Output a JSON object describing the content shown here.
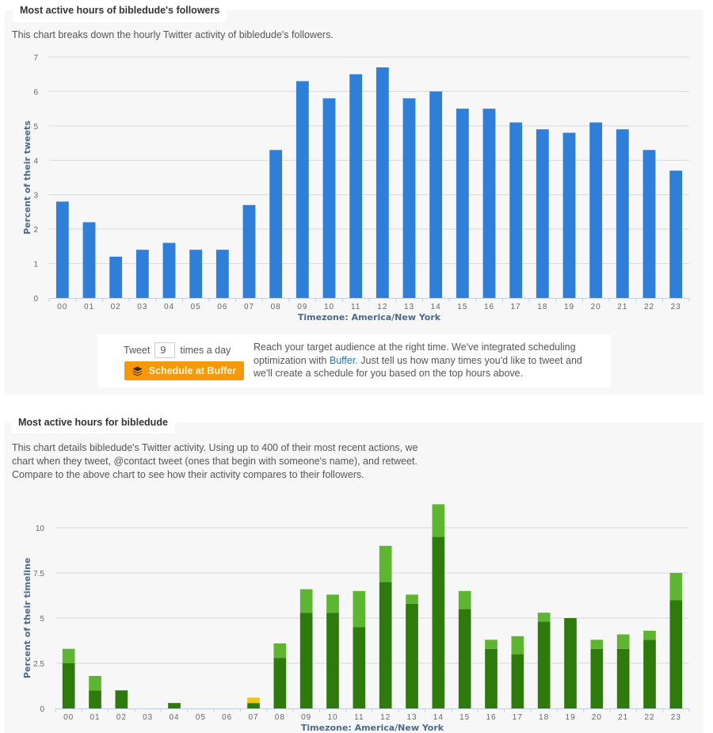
{
  "section1": {
    "title": "Most active hours of bibledude's followers",
    "description": "This chart breaks down the hourly Twitter activity of bibledude's followers."
  },
  "promo": {
    "tweet_label": "Tweet",
    "tweet_count": "9",
    "times_label": "times a day",
    "button_label": "Schedule at Buffer",
    "button_icon": "buffer-stack-icon",
    "text_before": "Reach your target audience at the right time. We've integrated scheduling optimization with ",
    "link_text": "Buffer",
    "text_after": ". Just tell us how many times you'd like to tweet and we'll create a schedule for you based on the top hours above.",
    "button_color": "#f5990b"
  },
  "section2": {
    "title": "Most active hours for bibledude",
    "description_lines": [
      "This chart details bibledude's Twitter activity. Using up to 400 of their most recent actions, we",
      "chart when they tweet, @contact tweet (ones that begin with someone's name), and retweet.",
      "Compare to the above chart to see how their activity compares to their followers."
    ]
  },
  "chart_data": [
    {
      "type": "bar",
      "title": "Most active hours of bibledude's followers",
      "xlabel": "Timezone: America/New York",
      "ylabel": "Percent of their tweets",
      "ylim": [
        0,
        7
      ],
      "yticks": [
        0,
        1,
        2,
        3,
        4,
        5,
        6,
        7
      ],
      "grid": true,
      "color": "#2f7ed8",
      "categories": [
        "00",
        "01",
        "02",
        "03",
        "04",
        "05",
        "06",
        "07",
        "08",
        "09",
        "10",
        "11",
        "12",
        "13",
        "14",
        "15",
        "16",
        "17",
        "18",
        "19",
        "20",
        "21",
        "22",
        "23"
      ],
      "values": [
        2.8,
        2.2,
        1.2,
        1.4,
        1.6,
        1.4,
        1.4,
        2.7,
        4.3,
        6.3,
        5.8,
        6.5,
        6.7,
        5.8,
        6.0,
        5.5,
        5.5,
        5.1,
        4.9,
        4.8,
        5.1,
        4.9,
        4.3,
        3.7
      ]
    },
    {
      "type": "bar",
      "stacked": true,
      "title": "Most active hours for bibledude",
      "xlabel": "Timezone: America/New York",
      "ylabel": "Percent of their timeline",
      "ylim": [
        0,
        11.5
      ],
      "yticks": [
        0,
        2.5,
        5,
        7.5,
        10
      ],
      "grid": true,
      "categories": [
        "00",
        "01",
        "02",
        "03",
        "04",
        "05",
        "06",
        "07",
        "08",
        "09",
        "10",
        "11",
        "12",
        "13",
        "14",
        "15",
        "16",
        "17",
        "18",
        "19",
        "20",
        "21",
        "22",
        "23"
      ],
      "series": [
        {
          "name": "tweet",
          "color": "#2f7a0c",
          "values": [
            2.5,
            1.0,
            1.0,
            0,
            0.3,
            0,
            0,
            0.3,
            2.8,
            5.3,
            5.3,
            4.5,
            7.0,
            5.8,
            9.5,
            5.5,
            3.3,
            3.0,
            4.8,
            5.0,
            3.3,
            3.3,
            3.8,
            6.0
          ]
        },
        {
          "name": "@contact tweet",
          "color": "#5db532",
          "values": [
            0.8,
            0.8,
            0,
            0,
            0,
            0,
            0,
            0,
            0.8,
            1.3,
            1.0,
            2.0,
            2.0,
            0.5,
            1.8,
            1.0,
            0.5,
            1.0,
            0.5,
            0,
            0.5,
            0.8,
            0.5,
            1.5
          ]
        },
        {
          "name": "retweet",
          "color": "#f2c80f",
          "values": [
            0,
            0,
            0,
            0,
            0,
            0,
            0,
            0.3,
            0,
            0,
            0,
            0,
            0,
            0,
            0,
            0,
            0,
            0,
            0,
            0,
            0,
            0,
            0,
            0
          ]
        }
      ]
    }
  ]
}
